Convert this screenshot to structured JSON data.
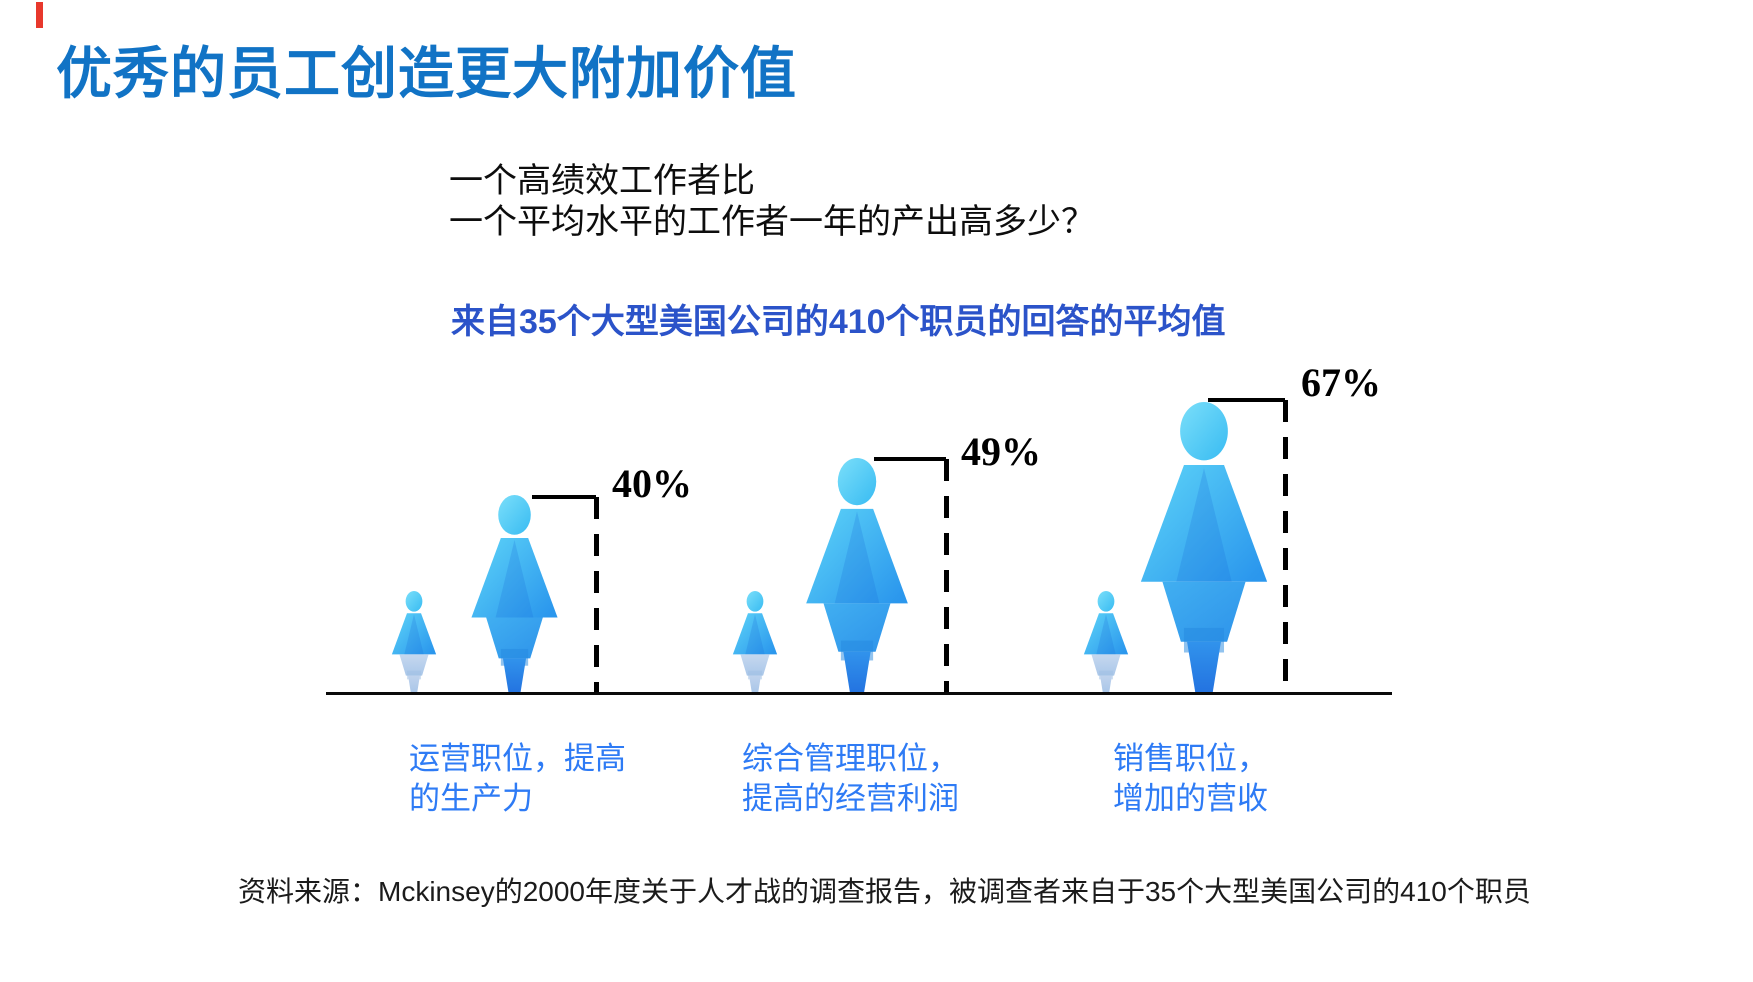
{
  "slide": {
    "title": "优秀的员工创造更大附加价值",
    "question_line1": "一个高绩效工作者比",
    "question_line2": "一个平均水平的工作者一年的产出高多少？",
    "subtitle": "来自35个大型美国公司的410个职员的回答的平均值",
    "source": "资料来源：Mckinsey的2000年度关于人才战的调查报告，被调查者来自于35个大型美国公司的410个职员"
  },
  "chart_data": {
    "type": "pictogram-bar",
    "title": "来自35个大型美国公司的410个职员的回答的平均值",
    "question": "一个高绩效工作者比一个平均水平的工作者一年的产出高多少？",
    "unit": "%",
    "categories": [
      "运营职位，提高的生产力",
      "综合管理职位，提高的经营利润",
      "销售职位，增加的营收"
    ],
    "values": [
      40,
      49,
      67
    ],
    "figure_meaning": {
      "small_figure": "平均水平的工作者",
      "large_figure": "高绩效工作者"
    },
    "groups": [
      {
        "value": 40,
        "value_label": "40%",
        "label_line1": "运营职位，提高",
        "label_line2": "的生产力"
      },
      {
        "value": 49,
        "value_label": "49%",
        "label_line1": "综合管理职位，",
        "label_line2": "提高的经营利润"
      },
      {
        "value": 67,
        "value_label": "67%",
        "label_line1": "销售职位，",
        "label_line2": "增加的营收"
      }
    ],
    "colors": {
      "title_blue": "#1173C5",
      "subtitle_blue": "#2B53C9",
      "category_label_blue": "#2E7BF5",
      "figure_cyan": "#5ED5F8",
      "figure_blue": "#2D9CEF",
      "figure_faded": "#B9CFEA",
      "accent_red": "#E8382C",
      "line_black": "#000000"
    },
    "layout_hints": {
      "baseline": "single black axis line under figures",
      "grid": "off",
      "legend": "none"
    }
  }
}
